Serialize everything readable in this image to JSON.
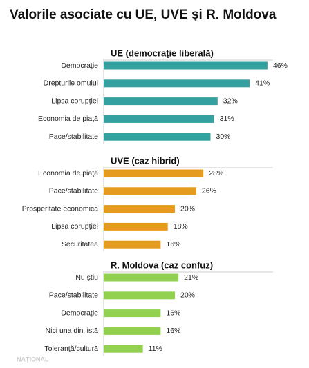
{
  "title": "Valorile asociate cu UE, UVE şi R. Moldova",
  "watermark": "NAȚIONAL",
  "chart_data": [
    {
      "type": "bar",
      "orientation": "horizontal",
      "title": "UE (democraţie liberală)",
      "color": "#35a0a0",
      "categories": [
        "Democraţie",
        "Drepturile omului",
        "Lipsa corupţiei",
        "Economia de piaţă",
        "Pace/stabilitate"
      ],
      "values": [
        46,
        41,
        32,
        31,
        30
      ],
      "value_labels": [
        "46%",
        "41%",
        "32%",
        "31%",
        "30%"
      ]
    },
    {
      "type": "bar",
      "orientation": "horizontal",
      "title": "UVE (caz hibrid)",
      "color": "#e59c1e",
      "categories": [
        "Economia de piaţă",
        "Pace/stabilitate",
        "Prosperitate economica",
        "Lipsa corupţiei",
        "Securitatea"
      ],
      "values": [
        28,
        26,
        20,
        18,
        16
      ],
      "value_labels": [
        "28%",
        "26%",
        "20%",
        "18%",
        "16%"
      ]
    },
    {
      "type": "bar",
      "orientation": "horizontal",
      "title": "R. Moldova (caz confuz)",
      "color": "#92d050",
      "categories": [
        "Nu ştiu",
        "Pace/stabilitate",
        "Democraţie",
        "Nici una din listă",
        "Toleranţă/cultură"
      ],
      "values": [
        21,
        20,
        16,
        16,
        11
      ],
      "value_labels": [
        "21%",
        "20%",
        "16%",
        "16%",
        "11%"
      ]
    }
  ]
}
